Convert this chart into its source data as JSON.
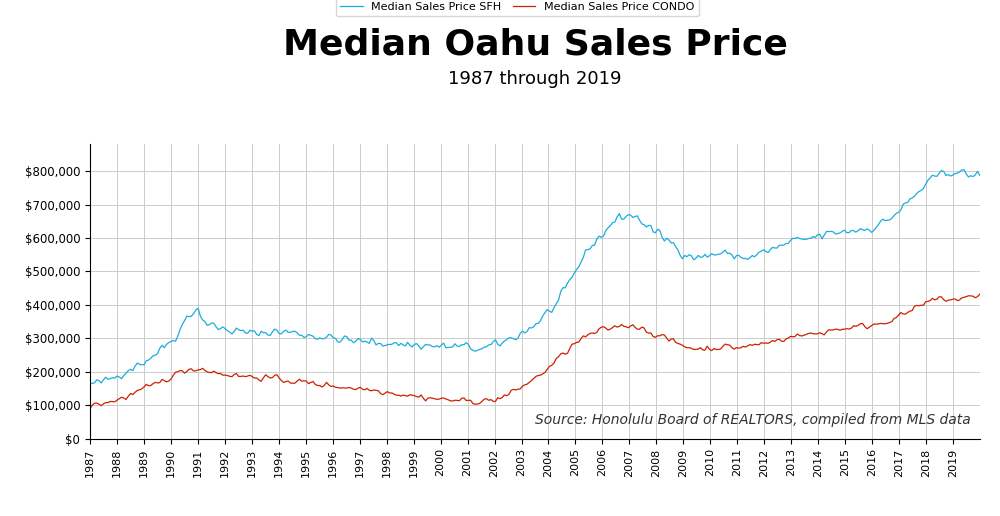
{
  "title": "Median Oahu Sales Price",
  "subtitle": "1987 through 2019",
  "legend_sfh": "Median Sales Price SFH",
  "legend_condo": "Median Sales Price CONDO",
  "source_text": "Source: Honolulu Board of REALTORS, compiled from MLS data",
  "sfh_color": "#1AADDE",
  "condo_color": "#CC2200",
  "ylim": [
    0,
    880000
  ],
  "yticks": [
    0,
    100000,
    200000,
    300000,
    400000,
    500000,
    600000,
    700000,
    800000
  ],
  "background_color": "#FFFFFF",
  "grid_color": "#CCCCCC",
  "title_fontsize": 26,
  "subtitle_fontsize": 13,
  "annotation_fontsize": 10,
  "start_year": 1987
}
